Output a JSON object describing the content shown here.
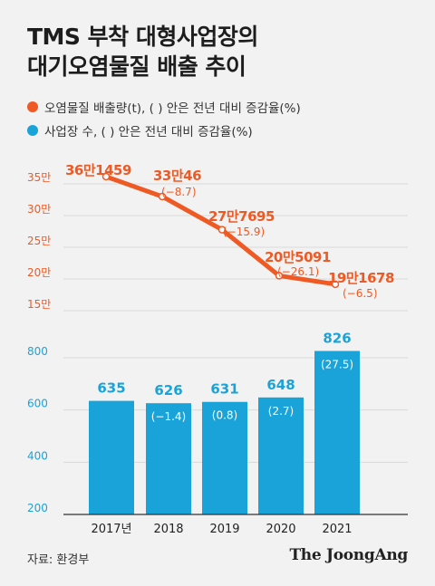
{
  "title_lines": [
    "TMS 부착 대형사업장의",
    "대기오염물질 배출 추이"
  ],
  "legend": [
    {
      "label": "오염물질 배출량(t), ( ) 안은 전년 대비 증감율(%)",
      "color": "#ef5a24"
    },
    {
      "label": "사업장 수, ( ) 안은 전년 대비 증감율(%)",
      "color": "#1aa3d8"
    }
  ],
  "source": "자료: 환경부",
  "brand": "The JoongAng",
  "chart_data": [
    {
      "type": "line",
      "categories": [
        "2017년",
        "2018",
        "2019",
        "2020",
        "2021"
      ],
      "series": [
        {
          "name": "오염물질 배출량(t)",
          "values": [
            361459,
            330046,
            277695,
            205091,
            191678
          ],
          "value_labels": [
            "36만1459",
            "33만46",
            "27만7695",
            "20만5091",
            "19만1678"
          ],
          "change_labels": [
            "",
            "(−8.7)",
            "(−15.9)",
            "(−26.1)",
            "(−6.5)"
          ],
          "color": "#ef5a24"
        }
      ],
      "yticks": [
        "15만",
        "20만",
        "25만",
        "30만",
        "35만"
      ],
      "ytick_values": [
        150000,
        200000,
        250000,
        300000,
        350000
      ],
      "ylim": [
        150000,
        350000
      ],
      "grid": true
    },
    {
      "type": "bar",
      "categories": [
        "2017년",
        "2018",
        "2019",
        "2020",
        "2021"
      ],
      "series": [
        {
          "name": "사업장 수",
          "values": [
            635,
            626,
            631,
            648,
            826
          ],
          "change_labels": [
            "",
            "(−1.4)",
            "(0.8)",
            "(2.7)",
            "(27.5)"
          ],
          "color": "#1aa3d8"
        }
      ],
      "yticks": [
        "200",
        "400",
        "600",
        "800"
      ],
      "ytick_values": [
        200,
        400,
        600,
        800
      ],
      "ylim": [
        200,
        800
      ],
      "grid": true
    }
  ]
}
